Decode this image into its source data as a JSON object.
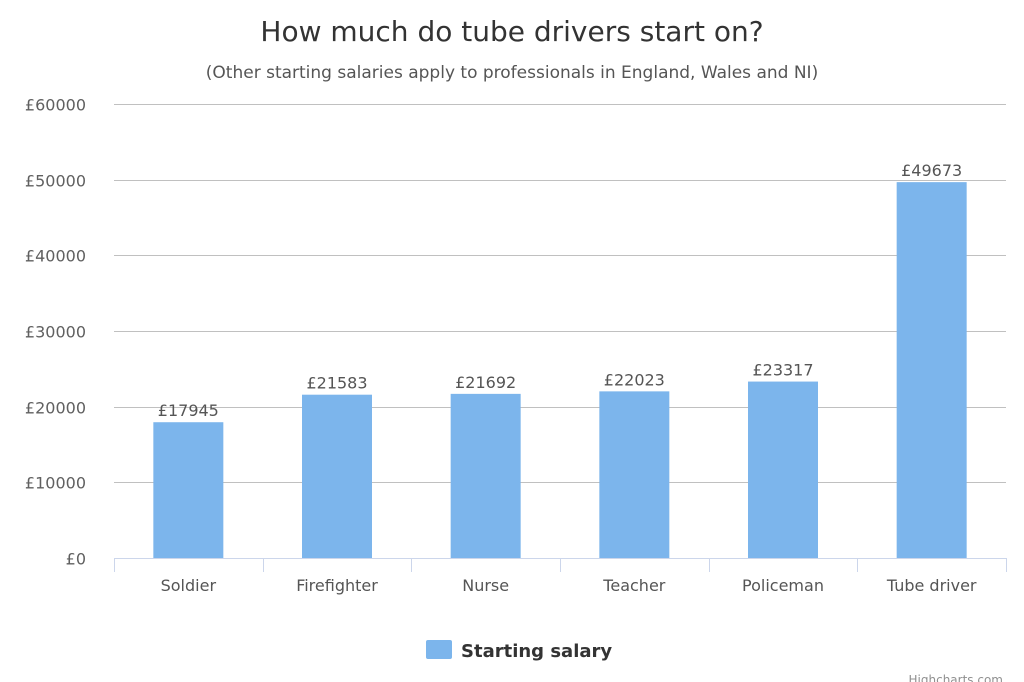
{
  "chart_data": {
    "type": "bar",
    "title": "How much do tube drivers start on?",
    "subtitle": "(Other starting salaries apply to professionals in England, Wales and NI)",
    "categories": [
      "Soldier",
      "Firefighter",
      "Nurse",
      "Teacher",
      "Policeman",
      "Tube driver"
    ],
    "series": [
      {
        "name": "Starting salary",
        "values": [
          17945,
          21583,
          21692,
          22023,
          23317,
          49673
        ],
        "color": "#7cb5ec"
      }
    ],
    "data_labels": [
      "£17945",
      "£21583",
      "£21692",
      "£22023",
      "£23317",
      "£49673"
    ],
    "y_ticks": [
      0,
      10000,
      20000,
      30000,
      40000,
      50000,
      60000
    ],
    "y_tick_labels": [
      "£0",
      "£10000",
      "£20000",
      "£30000",
      "£40000",
      "£50000",
      "£60000"
    ],
    "ylim": [
      0,
      60000
    ],
    "grid": true,
    "legend_position": "bottom-center",
    "credits": "Highcharts.com",
    "colors": {
      "bar": "#7cb5ec",
      "grid": "#c0c0c0",
      "axis": "#ccd6eb"
    }
  }
}
